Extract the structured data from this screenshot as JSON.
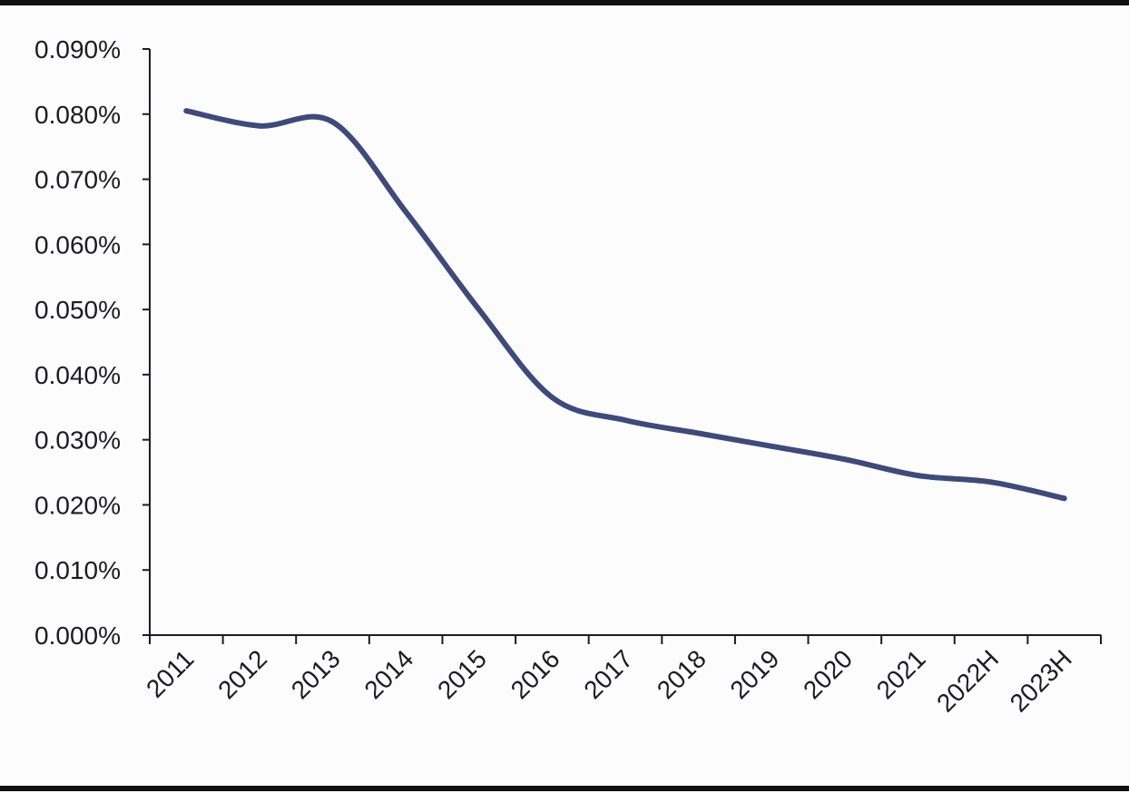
{
  "chart_data": {
    "type": "line",
    "title": "",
    "xlabel": "",
    "ylabel": "",
    "categories": [
      "2011",
      "2012",
      "2013",
      "2014",
      "2015",
      "2016",
      "2017",
      "2018",
      "2019",
      "2020",
      "2021",
      "2022H",
      "2023H"
    ],
    "series": [
      {
        "values": [
          0.0805,
          0.0782,
          0.0788,
          0.065,
          0.05,
          0.0365,
          0.033,
          0.031,
          0.029,
          0.027,
          0.0245,
          0.0235,
          0.021
        ],
        "color": "#3f4a7a"
      }
    ],
    "ylim": [
      0,
      0.09
    ],
    "y_ticks": [
      "0.000%",
      "0.010%",
      "0.020%",
      "0.030%",
      "0.040%",
      "0.050%",
      "0.060%",
      "0.070%",
      "0.080%",
      "0.090%"
    ],
    "y_unit": "%",
    "grid": false,
    "legend": "none",
    "smooth": true
  },
  "colors": {
    "line": "#3f4a7a",
    "axis": "#1b1b24",
    "text": "#1b1b24",
    "rules": "#111111"
  }
}
